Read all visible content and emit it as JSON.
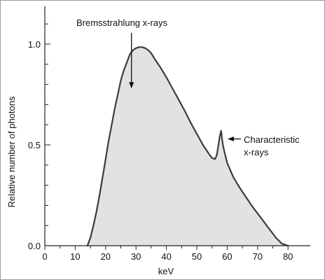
{
  "chart_data": {
    "type": "area",
    "xlabel": "keV",
    "ylabel": "Relative number of photons",
    "xlim": [
      0,
      84
    ],
    "ylim": [
      0,
      1.13
    ],
    "x_ticks": [
      0,
      10,
      20,
      30,
      40,
      50,
      60,
      70,
      80
    ],
    "x_tick_labels": [
      "0",
      "10",
      "20",
      "30",
      "40",
      "50",
      "60",
      "70",
      "80"
    ],
    "y_ticks": [
      0.0,
      0.5,
      1.0
    ],
    "y_tick_labels": [
      "0.0",
      "0.5",
      "1.0"
    ],
    "y_minor_ticks": [
      0.1,
      0.2,
      0.3,
      0.4,
      0.6,
      0.7,
      0.8,
      0.9,
      1.1
    ],
    "x_minor_ticks": [
      5,
      15,
      25,
      35,
      45,
      55,
      65,
      75
    ],
    "grid": false,
    "series": [
      {
        "x": [
          14,
          15,
          16,
          17,
          18,
          19,
          20,
          21,
          22,
          23,
          24,
          25,
          26,
          27,
          28,
          29,
          30,
          31,
          32,
          33,
          34,
          35,
          36,
          38,
          40,
          42,
          44,
          46,
          48,
          50,
          52,
          54,
          55,
          56,
          56.6,
          57,
          57.5,
          58,
          58.3,
          58.6,
          59,
          60,
          62,
          64,
          66,
          68,
          70,
          72,
          74,
          76,
          78,
          80
        ],
        "y": [
          0.0,
          0.04,
          0.1,
          0.17,
          0.25,
          0.34,
          0.43,
          0.52,
          0.6,
          0.68,
          0.75,
          0.82,
          0.87,
          0.91,
          0.95,
          0.97,
          0.98,
          0.985,
          0.985,
          0.98,
          0.97,
          0.955,
          0.93,
          0.885,
          0.835,
          0.78,
          0.725,
          0.67,
          0.61,
          0.555,
          0.5,
          0.455,
          0.435,
          0.43,
          0.45,
          0.49,
          0.54,
          0.57,
          0.53,
          0.5,
          0.47,
          0.41,
          0.34,
          0.29,
          0.245,
          0.2,
          0.16,
          0.12,
          0.08,
          0.04,
          0.01,
          0.0
        ]
      }
    ],
    "annotations": [
      {
        "text": "Bremsstrahlung x-rays",
        "points_to": {
          "x": 28.5,
          "y": 0.78
        }
      },
      {
        "text": "Characteristic",
        "points_to": {
          "x": 59.2,
          "y": 0.54
        }
      },
      {
        "text": "x-rays"
      }
    ],
    "colors": {
      "fill": "#e2e2e2",
      "line": "#3c3c3c",
      "axis": "#222222"
    }
  }
}
